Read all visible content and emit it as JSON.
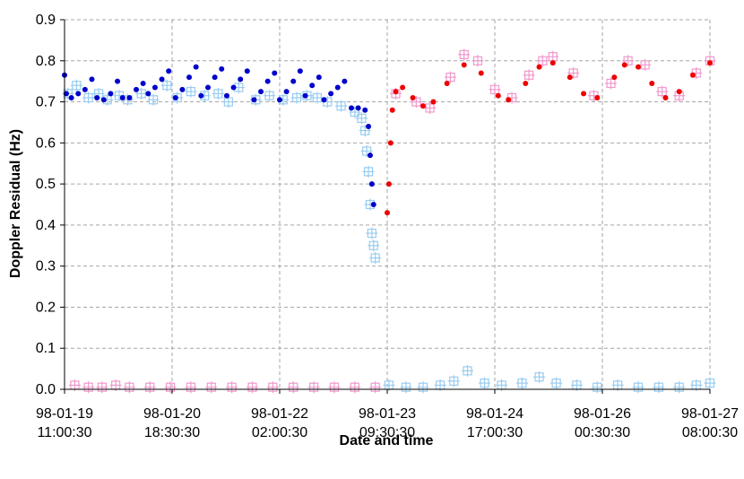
{
  "chart_data": {
    "type": "scatter",
    "title": "",
    "xlabel": "Date and time",
    "ylabel": "Doppler Residual (Hz)",
    "xlim": [
      "98-01-19 11:00:30",
      "98-01-27 08:00:30"
    ],
    "ylim": [
      0,
      0.9
    ],
    "yticks": [
      0,
      0.1,
      0.2,
      0.3,
      0.4,
      0.5,
      0.6,
      0.7,
      0.8,
      0.9
    ],
    "ytick_labels": [
      "0.0",
      "0.1",
      "0.2",
      "0.3",
      "0.4",
      "0.5",
      "0.6",
      "0.7",
      "0.8",
      "0.9"
    ],
    "xtick_labels": [
      [
        "98-01-19",
        "11:00:30"
      ],
      [
        "98-01-20",
        "18:30:30"
      ],
      [
        "98-01-22",
        "02:00:30"
      ],
      [
        "98-01-23",
        "09:30:30"
      ],
      [
        "98-01-24",
        "17:00:30"
      ],
      [
        "98-01-26",
        "00:30:30"
      ],
      [
        "98-01-27",
        "08:00:30"
      ]
    ],
    "grid": true,
    "legend": "none",
    "colors": {
      "blue_series": "#0000cc",
      "red_series": "#ee0000",
      "lightblue_series": "#99ccf0",
      "pink_series": "#f099cc",
      "grid": "#a6a6a6"
    },
    "series": [
      {
        "marker": "dot",
        "color": "#0000cc",
        "points": [
          [
            "98-01-19 11:00:30",
            0.765
          ],
          [
            "98-01-19 11:30:30",
            0.72
          ],
          [
            "98-01-19 13:00:30",
            0.71
          ],
          [
            "98-01-19 15:00:30",
            0.72
          ],
          [
            "98-01-19 17:00:30",
            0.73
          ],
          [
            "98-01-19 19:00:30",
            0.755
          ],
          [
            "98-01-19 20:30:30",
            0.71
          ],
          [
            "98-01-19 22:30:30",
            0.705
          ],
          [
            "98-01-20 00:30:30",
            0.72
          ],
          [
            "98-01-20 02:30:30",
            0.75
          ],
          [
            "98-01-20 04:00:30",
            0.71
          ],
          [
            "98-01-20 06:00:30",
            0.71
          ],
          [
            "98-01-20 08:00:30",
            0.73
          ],
          [
            "98-01-20 10:00:30",
            0.745
          ],
          [
            "98-01-20 11:30:30",
            0.72
          ],
          [
            "98-01-20 13:30:30",
            0.735
          ],
          [
            "98-01-20 15:30:30",
            0.755
          ],
          [
            "98-01-20 17:30:30",
            0.775
          ],
          [
            "98-01-20 19:30:30",
            0.71
          ],
          [
            "98-01-20 21:30:30",
            0.73
          ],
          [
            "98-01-20 23:30:30",
            0.76
          ],
          [
            "98-01-21 01:30:30",
            0.785
          ],
          [
            "98-01-21 03:00:30",
            0.715
          ],
          [
            "98-01-21 05:00:30",
            0.735
          ],
          [
            "98-01-21 07:00:30",
            0.76
          ],
          [
            "98-01-21 09:00:30",
            0.78
          ],
          [
            "98-01-21 10:30:30",
            0.715
          ],
          [
            "98-01-21 12:30:30",
            0.735
          ],
          [
            "98-01-21 14:30:30",
            0.755
          ],
          [
            "98-01-21 16:30:30",
            0.775
          ],
          [
            "98-01-21 18:30:30",
            0.705
          ],
          [
            "98-01-21 20:30:30",
            0.725
          ],
          [
            "98-01-21 22:30:30",
            0.75
          ],
          [
            "98-01-22 00:30:30",
            0.77
          ],
          [
            "98-01-22 02:00:30",
            0.705
          ],
          [
            "98-01-22 04:00:30",
            0.725
          ],
          [
            "98-01-22 06:00:30",
            0.75
          ],
          [
            "98-01-22 08:00:30",
            0.775
          ],
          [
            "98-01-22 09:30:30",
            0.715
          ],
          [
            "98-01-22 11:30:30",
            0.74
          ],
          [
            "98-01-22 13:30:30",
            0.76
          ],
          [
            "98-01-22 15:00:30",
            0.705
          ],
          [
            "98-01-22 17:00:30",
            0.72
          ],
          [
            "98-01-22 19:00:30",
            0.735
          ],
          [
            "98-01-22 21:00:30",
            0.75
          ],
          [
            "98-01-22 23:00:30",
            0.685
          ],
          [
            "98-01-23 01:00:30",
            0.685
          ],
          [
            "98-01-23 03:00:30",
            0.68
          ],
          [
            "98-01-23 04:00:30",
            0.64
          ],
          [
            "98-01-23 04:30:30",
            0.57
          ],
          [
            "98-01-23 05:00:30",
            0.5
          ],
          [
            "98-01-23 05:30:30",
            0.45
          ]
        ]
      },
      {
        "marker": "dot",
        "color": "#ee0000",
        "points": [
          [
            "98-01-23 09:30:30",
            0.43
          ],
          [
            "98-01-23 10:00:30",
            0.5
          ],
          [
            "98-01-23 10:30:30",
            0.6
          ],
          [
            "98-01-23 11:00:30",
            0.68
          ],
          [
            "98-01-23 12:00:30",
            0.725
          ],
          [
            "98-01-23 14:00:30",
            0.735
          ],
          [
            "98-01-23 17:00:30",
            0.71
          ],
          [
            "98-01-23 20:00:30",
            0.69
          ],
          [
            "98-01-23 23:00:30",
            0.7
          ],
          [
            "98-01-24 03:00:30",
            0.745
          ],
          [
            "98-01-24 08:00:30",
            0.79
          ],
          [
            "98-01-24 13:00:30",
            0.77
          ],
          [
            "98-01-24 18:00:30",
            0.715
          ],
          [
            "98-01-24 21:00:30",
            0.705
          ],
          [
            "98-01-25 02:00:30",
            0.745
          ],
          [
            "98-01-25 06:00:30",
            0.785
          ],
          [
            "98-01-25 10:00:30",
            0.795
          ],
          [
            "98-01-25 15:00:30",
            0.76
          ],
          [
            "98-01-25 19:00:30",
            0.72
          ],
          [
            "98-01-25 23:00:30",
            0.71
          ],
          [
            "98-01-26 04:00:30",
            0.76
          ],
          [
            "98-01-26 07:00:30",
            0.79
          ],
          [
            "98-01-26 11:00:30",
            0.785
          ],
          [
            "98-01-26 15:00:30",
            0.745
          ],
          [
            "98-01-26 19:00:30",
            0.71
          ],
          [
            "98-01-26 23:00:30",
            0.725
          ],
          [
            "98-01-27 03:00:30",
            0.765
          ],
          [
            "98-01-27 08:00:30",
            0.795
          ]
        ]
      },
      {
        "marker": "boxed-cross",
        "color": "#99ccf0",
        "points": [
          [
            "98-01-19 12:00:30",
            0.72
          ],
          [
            "98-01-19 14:30:30",
            0.74
          ],
          [
            "98-01-19 18:00:30",
            0.71
          ],
          [
            "98-01-19 21:00:30",
            0.72
          ],
          [
            "98-01-19 23:30:30",
            0.705
          ],
          [
            "98-01-20 03:00:30",
            0.715
          ],
          [
            "98-01-20 05:30:30",
            0.705
          ],
          [
            "98-01-20 09:30:30",
            0.72
          ],
          [
            "98-01-20 13:00:30",
            0.705
          ],
          [
            "98-01-20 17:00:30",
            0.74
          ],
          [
            "98-01-20 20:00:30",
            0.71
          ],
          [
            "98-01-21 00:00:30",
            0.725
          ],
          [
            "98-01-21 04:00:30",
            0.715
          ],
          [
            "98-01-21 08:00:30",
            0.72
          ],
          [
            "98-01-21 11:00:30",
            0.7
          ],
          [
            "98-01-21 14:00:30",
            0.735
          ],
          [
            "98-01-21 19:00:30",
            0.705
          ],
          [
            "98-01-21 23:00:30",
            0.715
          ],
          [
            "98-01-22 03:00:30",
            0.705
          ],
          [
            "98-01-22 07:00:30",
            0.71
          ],
          [
            "98-01-22 10:00:30",
            0.715
          ],
          [
            "98-01-22 13:00:30",
            0.71
          ],
          [
            "98-01-22 16:00:30",
            0.7
          ],
          [
            "98-01-22 20:00:30",
            0.69
          ],
          [
            "98-01-23 00:00:30",
            0.675
          ],
          [
            "98-01-23 02:00:30",
            0.66
          ],
          [
            "98-01-23 03:00:30",
            0.63
          ],
          [
            "98-01-23 03:30:30",
            0.58
          ],
          [
            "98-01-23 04:00:30",
            0.53
          ],
          [
            "98-01-23 04:30:30",
            0.45
          ],
          [
            "98-01-23 05:00:30",
            0.38
          ],
          [
            "98-01-23 05:30:30",
            0.35
          ],
          [
            "98-01-23 06:00:30",
            0.32
          ],
          [
            "98-01-23 10:00:30",
            0.01
          ],
          [
            "98-01-23 15:00:30",
            0.005
          ],
          [
            "98-01-23 20:00:30",
            0.005
          ],
          [
            "98-01-24 01:00:30",
            0.01
          ],
          [
            "98-01-24 05:00:30",
            0.02
          ],
          [
            "98-01-24 09:00:30",
            0.045
          ],
          [
            "98-01-24 14:00:30",
            0.015
          ],
          [
            "98-01-24 19:00:30",
            0.01
          ],
          [
            "98-01-25 01:00:30",
            0.015
          ],
          [
            "98-01-25 06:00:30",
            0.03
          ],
          [
            "98-01-25 11:00:30",
            0.015
          ],
          [
            "98-01-25 17:00:30",
            0.01
          ],
          [
            "98-01-25 23:00:30",
            0.005
          ],
          [
            "98-01-26 05:00:30",
            0.01
          ],
          [
            "98-01-26 11:00:30",
            0.005
          ],
          [
            "98-01-26 17:00:30",
            0.005
          ],
          [
            "98-01-26 23:00:30",
            0.005
          ],
          [
            "98-01-27 04:00:30",
            0.01
          ],
          [
            "98-01-27 08:00:30",
            0.015
          ]
        ]
      },
      {
        "marker": "boxed-cross",
        "color": "#f099cc",
        "points": [
          [
            "98-01-19 14:00:30",
            0.01
          ],
          [
            "98-01-19 18:00:30",
            0.005
          ],
          [
            "98-01-19 22:00:30",
            0.005
          ],
          [
            "98-01-20 02:00:30",
            0.01
          ],
          [
            "98-01-20 06:00:30",
            0.005
          ],
          [
            "98-01-20 12:00:30",
            0.005
          ],
          [
            "98-01-20 18:00:30",
            0.005
          ],
          [
            "98-01-21 00:00:30",
            0.005
          ],
          [
            "98-01-21 06:00:30",
            0.005
          ],
          [
            "98-01-21 12:00:30",
            0.005
          ],
          [
            "98-01-21 18:00:30",
            0.005
          ],
          [
            "98-01-22 00:00:30",
            0.005
          ],
          [
            "98-01-22 06:00:30",
            0.005
          ],
          [
            "98-01-22 12:00:30",
            0.005
          ],
          [
            "98-01-22 18:00:30",
            0.005
          ],
          [
            "98-01-23 00:00:30",
            0.005
          ],
          [
            "98-01-23 06:00:30",
            0.005
          ],
          [
            "98-01-23 12:00:30",
            0.72
          ],
          [
            "98-01-23 18:00:30",
            0.7
          ],
          [
            "98-01-23 22:00:30",
            0.685
          ],
          [
            "98-01-24 04:00:30",
            0.76
          ],
          [
            "98-01-24 08:00:30",
            0.815
          ],
          [
            "98-01-24 12:00:30",
            0.8
          ],
          [
            "98-01-24 17:00:30",
            0.73
          ],
          [
            "98-01-24 22:00:30",
            0.71
          ],
          [
            "98-01-25 03:00:30",
            0.765
          ],
          [
            "98-01-25 07:00:30",
            0.8
          ],
          [
            "98-01-25 10:00:30",
            0.81
          ],
          [
            "98-01-25 16:00:30",
            0.77
          ],
          [
            "98-01-25 22:00:30",
            0.715
          ],
          [
            "98-01-26 03:00:30",
            0.745
          ],
          [
            "98-01-26 08:00:30",
            0.8
          ],
          [
            "98-01-26 13:00:30",
            0.79
          ],
          [
            "98-01-26 18:00:30",
            0.725
          ],
          [
            "98-01-26 23:00:30",
            0.715
          ],
          [
            "98-01-27 04:00:30",
            0.77
          ],
          [
            "98-01-27 08:00:30",
            0.8
          ]
        ]
      }
    ]
  }
}
